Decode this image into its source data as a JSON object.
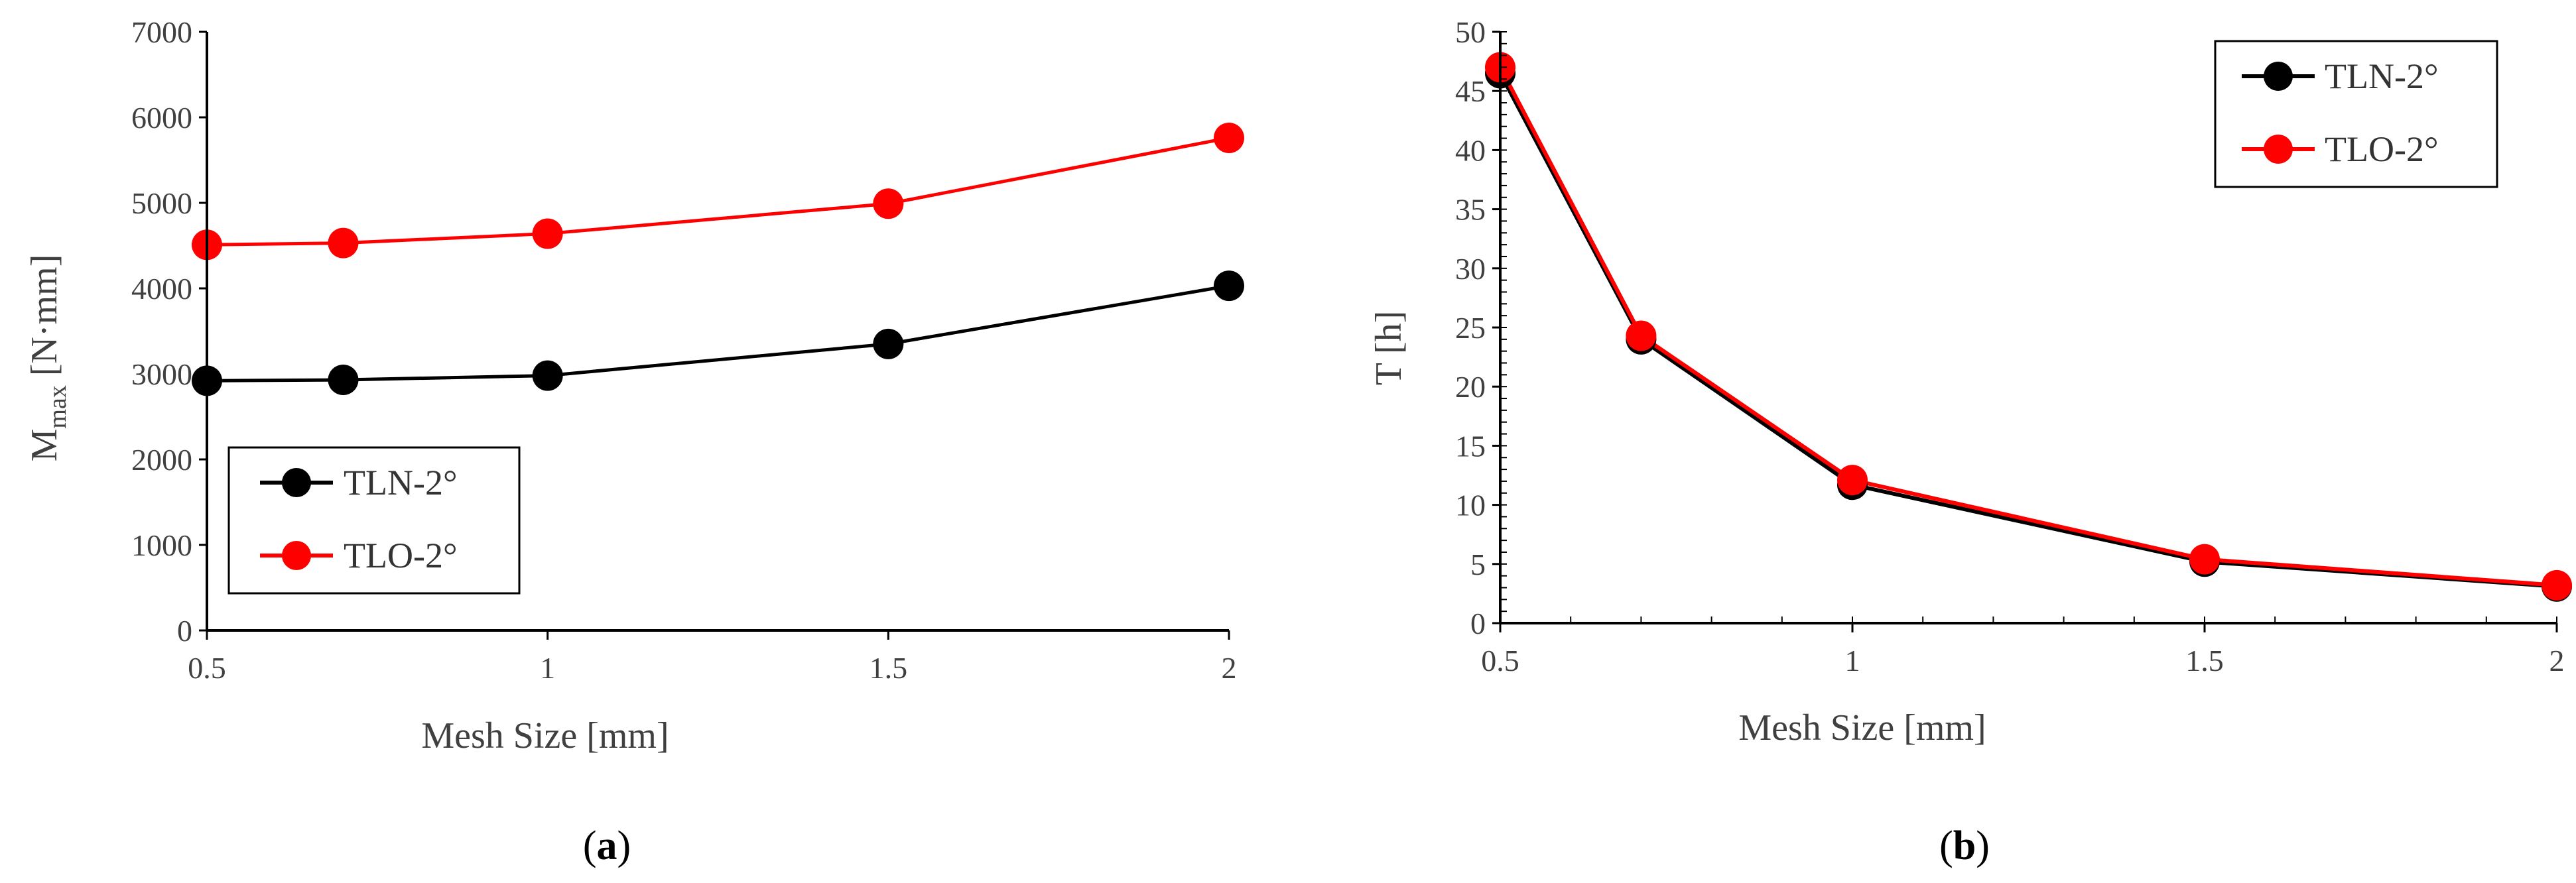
{
  "colors": {
    "TLN": "#000000",
    "TLO": "#ff0000",
    "axis": "#000000",
    "text": "#404040"
  },
  "chart_data": [
    {
      "type": "line",
      "panel": "(a)",
      "caption": {
        "open": "(",
        "letter": "a",
        "close": ")"
      },
      "xlabel": "Mesh Size [mm]",
      "ylabel": {
        "main": "M",
        "sub": "max",
        "units": " [N·mm]"
      },
      "xlim": [
        0.5,
        2
      ],
      "ylim": [
        0,
        7000
      ],
      "xticks": [
        {
          "v": 0.5,
          "label": "0.5"
        },
        {
          "v": 1,
          "label": "1"
        },
        {
          "v": 1.5,
          "label": "1.5"
        },
        {
          "v": 2,
          "label": "2"
        }
      ],
      "yticks": [
        {
          "v": 0,
          "label": "0"
        },
        {
          "v": 1000,
          "label": "1000"
        },
        {
          "v": 2000,
          "label": "2000"
        },
        {
          "v": 3000,
          "label": "3000"
        },
        {
          "v": 4000,
          "label": "4000"
        },
        {
          "v": 5000,
          "label": "5000"
        },
        {
          "v": 6000,
          "label": "6000"
        },
        {
          "v": 7000,
          "label": "7000"
        }
      ],
      "x": [
        0.5,
        0.7,
        1,
        1.5,
        2
      ],
      "series": [
        {
          "name": "TLN-2°",
          "color": "#000000",
          "values": [
            2920,
            2930,
            2980,
            3350,
            4030
          ]
        },
        {
          "name": "TLO-2°",
          "color": "#ff0000",
          "values": [
            4510,
            4530,
            4640,
            4990,
            5760
          ]
        }
      ],
      "legend": "bottom-left",
      "grid": false
    },
    {
      "type": "line",
      "panel": "(b)",
      "caption": {
        "open": "(",
        "letter": "b",
        "close": ")"
      },
      "xlabel": "Mesh Size [mm]",
      "ylabel": {
        "main": "T [h]",
        "sub": "",
        "units": ""
      },
      "xlim": [
        0.5,
        2
      ],
      "ylim": [
        0,
        50
      ],
      "xticks": [
        {
          "v": 0.5,
          "label": "0.5"
        },
        {
          "v": 1,
          "label": "1"
        },
        {
          "v": 1.5,
          "label": "1.5"
        },
        {
          "v": 2,
          "label": "2"
        }
      ],
      "yticks": [
        {
          "v": 0,
          "label": "0"
        },
        {
          "v": 5,
          "label": "5"
        },
        {
          "v": 10,
          "label": "10"
        },
        {
          "v": 15,
          "label": "15"
        },
        {
          "v": 20,
          "label": "20"
        },
        {
          "v": 25,
          "label": "25"
        },
        {
          "v": 30,
          "label": "30"
        },
        {
          "v": 35,
          "label": "35"
        },
        {
          "v": 40,
          "label": "40"
        },
        {
          "v": 45,
          "label": "45"
        },
        {
          "v": 50,
          "label": "50"
        }
      ],
      "x": [
        0.5,
        0.7,
        1,
        1.5,
        2
      ],
      "series": [
        {
          "name": "TLN-2°",
          "color": "#000000",
          "values": [
            46.5,
            24,
            11.7,
            5.2,
            3.1
          ]
        },
        {
          "name": "TLO-2°",
          "color": "#ff0000",
          "values": [
            47,
            24.3,
            12.1,
            5.4,
            3.2
          ]
        }
      ],
      "legend": "top-right",
      "grid": false
    }
  ]
}
